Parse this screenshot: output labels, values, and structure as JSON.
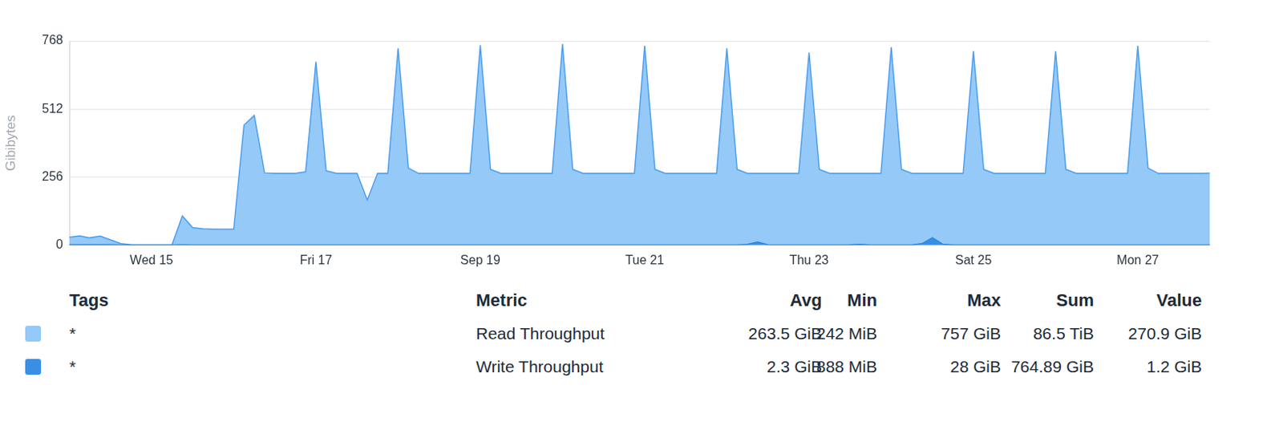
{
  "chart_data": {
    "type": "line",
    "y_label": "Gibibytes",
    "categories": [
      null,
      null,
      null,
      null,
      null,
      null,
      null,
      null,
      "Wed 15",
      null,
      null,
      null,
      null,
      null,
      null,
      null,
      null,
      null,
      null,
      null,
      null,
      null,
      null,
      null,
      "Fri 17",
      null,
      null,
      null,
      null,
      null,
      null,
      null,
      null,
      null,
      null,
      null,
      null,
      null,
      null,
      null,
      "Sep 19",
      null,
      null,
      null,
      null,
      null,
      null,
      null,
      null,
      null,
      null,
      null,
      null,
      null,
      null,
      null,
      "Tue 21",
      null,
      null,
      null,
      null,
      null,
      null,
      null,
      null,
      null,
      null,
      null,
      null,
      null,
      null,
      null,
      "Thu 23",
      null,
      null,
      null,
      null,
      null,
      null,
      null,
      null,
      null,
      null,
      null,
      null,
      null,
      null,
      null,
      "Sat 25",
      null,
      null,
      null,
      null,
      null,
      null,
      null,
      null,
      null,
      null,
      null,
      null,
      null,
      null,
      null,
      "Mon 27",
      null,
      null,
      null,
      null,
      null,
      null,
      null
    ],
    "series": [
      {
        "name": "Read Throughput",
        "color": "#95c9f8",
        "values": [
          30,
          35,
          28,
          34,
          20,
          6,
          2,
          1,
          1,
          1,
          2,
          110,
          66,
          62,
          60,
          60,
          60,
          452,
          488,
          272,
          270,
          270,
          270,
          276,
          690,
          280,
          270,
          270,
          270,
          170,
          270,
          270,
          740,
          290,
          270,
          270,
          270,
          270,
          270,
          270,
          752,
          285,
          270,
          270,
          270,
          270,
          270,
          270,
          757,
          285,
          270,
          270,
          270,
          270,
          270,
          270,
          750,
          285,
          270,
          270,
          270,
          270,
          270,
          270,
          740,
          285,
          270,
          270,
          270,
          270,
          270,
          270,
          725,
          285,
          270,
          270,
          270,
          270,
          270,
          270,
          745,
          285,
          270,
          270,
          270,
          270,
          270,
          270,
          730,
          285,
          270,
          270,
          270,
          270,
          270,
          270,
          730,
          285,
          270,
          270,
          270,
          270,
          270,
          270,
          750,
          290,
          270,
          270,
          270,
          270,
          270,
          270.9
        ]
      },
      {
        "name": "Write Throughput",
        "color": "#3a8fe4",
        "values": [
          2,
          2,
          2,
          2,
          1.5,
          1.2,
          1,
          1,
          1,
          1,
          1,
          1.5,
          1.2,
          1.2,
          1.2,
          1.2,
          1.2,
          1.2,
          1.2,
          1.2,
          1.2,
          1.2,
          1.2,
          1.2,
          1.2,
          1.2,
          1.2,
          1.2,
          1.2,
          1.2,
          0.9,
          1.2,
          1.2,
          1.2,
          1.2,
          1.2,
          1.2,
          1.2,
          1.2,
          1.2,
          1.2,
          1.2,
          1.2,
          1.2,
          1.2,
          1.2,
          1.2,
          1.2,
          1.2,
          1.2,
          1.2,
          1.2,
          1.2,
          1.2,
          1.2,
          1.2,
          1.2,
          1.2,
          1.2,
          1.2,
          1.2,
          1.2,
          1.2,
          1.2,
          1.2,
          1.2,
          3,
          12,
          2,
          1.2,
          1.2,
          1.2,
          1.2,
          1.2,
          1.2,
          1.2,
          1.5,
          3,
          1.2,
          1.2,
          1.2,
          1.2,
          1.2,
          6,
          28,
          4,
          1.2,
          1.2,
          1.2,
          1.2,
          1.2,
          1.2,
          1.2,
          1.2,
          1.2,
          1.2,
          1.2,
          1.2,
          1.2,
          1.2,
          1.2,
          1.2,
          1.2,
          1.2,
          1.2,
          1.2,
          1.2,
          1.2,
          1.2,
          1.2,
          1.2,
          1.2
        ]
      }
    ],
    "ylim": [
      0,
      768
    ],
    "yticks": [
      0,
      256,
      512,
      768
    ],
    "grid": "y",
    "legend": "bottom",
    "legend_table": {
      "columns": [
        "Tags",
        "Metric",
        "Avg",
        "Min",
        "Max",
        "Sum",
        "Value"
      ],
      "rows": [
        [
          "*",
          "Read Throughput",
          "263.5 GiB",
          "242 MiB",
          "757 GiB",
          "86.5 TiB",
          "270.9 GiB"
        ],
        [
          "*",
          "Write Throughput",
          "2.3 GiB",
          "888 MiB",
          "28 GiB",
          "764.89 GiB",
          "1.2 GiB"
        ]
      ]
    }
  }
}
